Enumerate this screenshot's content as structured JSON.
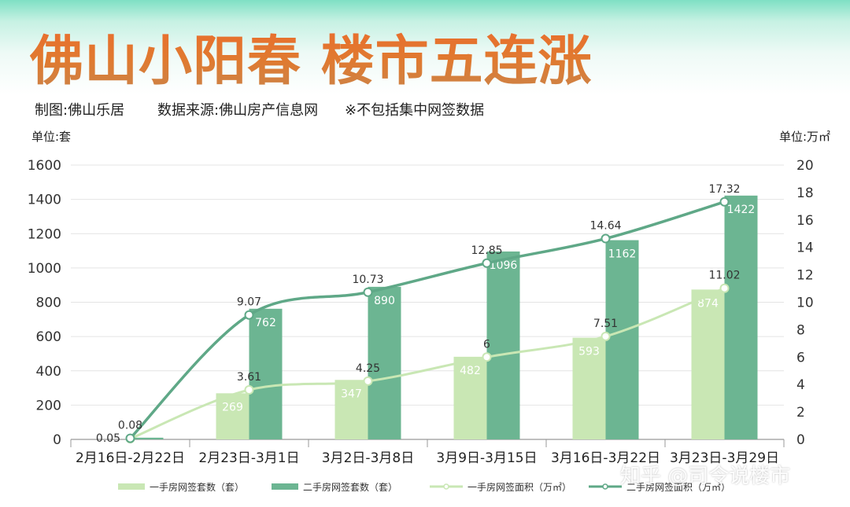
{
  "header": {
    "title": "佛山小阳春 楼市五连涨",
    "credit": "制图:佛山乐居",
    "source": "数据来源:佛山房产信息网",
    "note": "※不包括集中网签数据"
  },
  "axes": {
    "left_unit": "单位:套",
    "right_unit": "单位:万㎡"
  },
  "watermark": "知乎 @司令说楼市",
  "colors": {
    "new_bar": "#c9e7b4",
    "second_bar": "#6cb592",
    "new_line": "#c9e7b4",
    "second_line": "#5fa887",
    "grid": "#e4e4e4"
  },
  "chart_data": {
    "type": "bar",
    "categories": [
      "2月16日-2月22日",
      "2月23日-3月1日",
      "3月2日-3月8日",
      "3月9日-3月15日",
      "3月16日-3月22日",
      "3月23日-3月29日"
    ],
    "left_axis": {
      "ylim": [
        0,
        1600
      ],
      "ticks": [
        0,
        200,
        400,
        600,
        800,
        1000,
        1200,
        1400,
        1600
      ]
    },
    "right_axis": {
      "ylim": [
        0,
        20
      ],
      "ticks": [
        0,
        2,
        4,
        6,
        8,
        10,
        12,
        14,
        16,
        18,
        20
      ]
    },
    "grid": true,
    "legend_position": "bottom",
    "series": [
      {
        "name": "一手房网签套数（套）",
        "type": "bar",
        "axis": "left",
        "values": [
          null,
          269,
          347,
          482,
          593,
          874
        ],
        "labels": [
          "",
          "269",
          "347",
          "482",
          "593",
          "874"
        ]
      },
      {
        "name": "二手房网签套数（套）",
        "type": "bar",
        "axis": "left",
        "values": [
          10,
          762,
          890,
          1096,
          1162,
          1422
        ],
        "labels": [
          "",
          "762",
          "890",
          "1096",
          "1162",
          "1422"
        ]
      },
      {
        "name": "一手房网签面积（万㎡）",
        "type": "line",
        "axis": "right",
        "values": [
          0.05,
          3.61,
          4.25,
          6,
          7.51,
          11.02
        ],
        "labels": [
          "0.05",
          "3.61",
          "4.25",
          "6",
          "7.51",
          "11.02"
        ]
      },
      {
        "name": "二手房网签面积（万㎡）",
        "type": "line",
        "axis": "right",
        "values": [
          0.08,
          9.07,
          10.73,
          12.85,
          14.64,
          17.32
        ],
        "labels": [
          "0.08",
          "9.07",
          "10.73",
          "12.85",
          "14.64",
          "17.32"
        ]
      }
    ]
  }
}
